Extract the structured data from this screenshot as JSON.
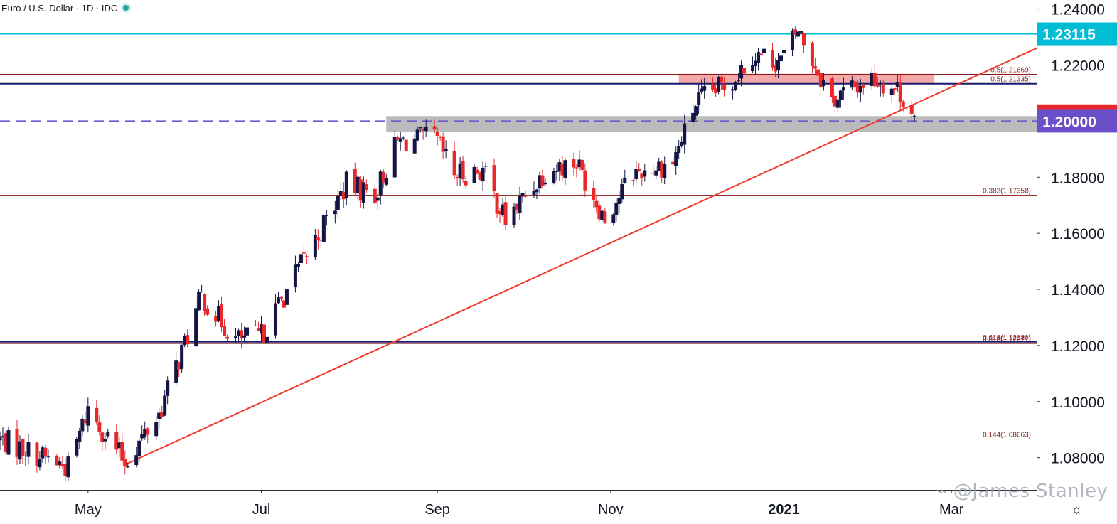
{
  "header": {
    "symbol": "Euro / U.S. Dollar",
    "interval": "1D",
    "source": "IDC"
  },
  "watermark": "@James Stanley",
  "icons": {
    "status": "market-open-dot-icon",
    "settings": "gear-icon",
    "watermark": "weibo-icon"
  },
  "colors": {
    "up": "#131545",
    "down": "#e8282b",
    "resistance_line": "#00bcd4",
    "navy_line": "#1a1a6e",
    "dashed_line": "#6a5acd",
    "fib_line": "#8b1a1a",
    "trendline": "#ef3b2c",
    "red_zone": "#f28b8b",
    "gray_zone": "#9e9e9e"
  },
  "chart_data": {
    "type": "candlestick",
    "title": "Euro / U.S. Dollar · 1D · IDC",
    "y_axis": {
      "ticks": [
        1.24,
        1.22,
        1.2,
        1.18,
        1.16,
        1.14,
        1.12,
        1.1,
        1.08
      ],
      "tick_labels": [
        "1.24000",
        "1.22000",
        "1.20000",
        "1.18000",
        "1.16000",
        "1.14000",
        "1.12000",
        "1.10000",
        "1.08000"
      ],
      "range": [
        1.0685,
        1.2432
      ]
    },
    "x_axis": {
      "range": [
        "2020-03-31",
        "2021-03-31"
      ],
      "ticks": [
        {
          "date": "2020-05-01",
          "label": "May",
          "bold": false
        },
        {
          "date": "2020-07-01",
          "label": "Jul",
          "bold": false
        },
        {
          "date": "2020-09-01",
          "label": "Sep",
          "bold": false
        },
        {
          "date": "2020-11-01",
          "label": "Nov",
          "bold": false
        },
        {
          "date": "2021-01-01",
          "label": "2021",
          "bold": true
        },
        {
          "date": "2021-03-01",
          "label": "Mar",
          "bold": false
        }
      ]
    },
    "price_tags": [
      {
        "label": "1.23115",
        "value": 1.23115,
        "color": "#00bcd4"
      },
      {
        "label": "1.20193",
        "value": 1.20193,
        "color": "#e8282b"
      },
      {
        "label": "1.20000",
        "value": 1.2,
        "color": "#6a4fc9"
      }
    ],
    "horizontal_levels": [
      {
        "value": 1.23115,
        "style": "solid",
        "color": "#00bcd4",
        "width": 2
      },
      {
        "value": 1.21669,
        "style": "solid",
        "color": "#8b1a1a",
        "width": 1
      },
      {
        "value": 1.21335,
        "style": "solid",
        "color": "#1a1a6e",
        "width": 2
      },
      {
        "value": 1.2,
        "style": "dashed",
        "color": "#6a5acd",
        "width": 2
      },
      {
        "value": 1.17358,
        "style": "solid",
        "color": "#8b1a1a",
        "width": 1
      },
      {
        "value": 1.1213,
        "style": "solid",
        "color": "#1a1a6e",
        "width": 2
      },
      {
        "value": 1.12071,
        "style": "solid",
        "color": "#8b1a1a",
        "width": 1
      },
      {
        "value": 1.08663,
        "style": "solid",
        "color": "#8b1a1a",
        "width": 1
      }
    ],
    "fib_labels": [
      {
        "text": "0.5(1.21669)",
        "value": 1.21669
      },
      {
        "text": "0.5(1.21335)",
        "value": 1.21335
      },
      {
        "text": "0.382(1.17358)",
        "value": 1.17358
      },
      {
        "text": "0.618(1.12130)",
        "value": 1.1213
      },
      {
        "text": "0.618(1.12071)",
        "value": 1.12071
      },
      {
        "text": "0.144(1.08663)",
        "value": 1.08663
      }
    ],
    "zones": [
      {
        "from_date": "2020-11-25",
        "to_date": "2021-02-23",
        "high": 1.2169,
        "low": 1.2135,
        "color": "#f28b8b"
      },
      {
        "from_date": "2020-08-14",
        "to_date": "2021-03-31",
        "high": 1.2018,
        "low": 1.1962,
        "color": "#9e9e9e"
      }
    ],
    "trendline": {
      "start": {
        "date": "2020-05-14",
        "value": 1.0775
      },
      "end": {
        "date": "2021-03-31",
        "value": 1.226
      }
    },
    "anchors": [
      {
        "date": "2020-03-31",
        "value": 1.0866
      },
      {
        "date": "2020-04-24",
        "value": 1.0765
      },
      {
        "date": "2020-05-01",
        "value": 1.0975
      },
      {
        "date": "2020-05-14",
        "value": 1.0785
      },
      {
        "date": "2020-05-26",
        "value": 1.0955
      },
      {
        "date": "2020-06-10",
        "value": 1.1375
      },
      {
        "date": "2020-06-22",
        "value": 1.122
      },
      {
        "date": "2020-07-01",
        "value": 1.1235
      },
      {
        "date": "2020-07-31",
        "value": 1.1775
      },
      {
        "date": "2020-08-10",
        "value": 1.174
      },
      {
        "date": "2020-08-18",
        "value": 1.1925
      },
      {
        "date": "2020-08-31",
        "value": 1.194
      },
      {
        "date": "2020-09-07",
        "value": 1.181
      },
      {
        "date": "2020-09-17",
        "value": 1.1825
      },
      {
        "date": "2020-09-25",
        "value": 1.1645
      },
      {
        "date": "2020-10-09",
        "value": 1.1825
      },
      {
        "date": "2020-10-20",
        "value": 1.1855
      },
      {
        "date": "2020-10-30",
        "value": 1.1655
      },
      {
        "date": "2020-11-09",
        "value": 1.1815
      },
      {
        "date": "2020-11-23",
        "value": 1.1855
      },
      {
        "date": "2020-12-01",
        "value": 1.2065
      },
      {
        "date": "2020-12-14",
        "value": 1.215
      },
      {
        "date": "2020-12-21",
        "value": 1.224
      },
      {
        "date": "2020-12-31",
        "value": 1.2215
      },
      {
        "date": "2021-01-06",
        "value": 1.2325
      },
      {
        "date": "2021-01-18",
        "value": 1.2075
      },
      {
        "date": "2021-02-01",
        "value": 1.2155
      },
      {
        "date": "2021-02-10",
        "value": 1.2115
      },
      {
        "date": "2021-02-16",
        "value": 1.2025
      }
    ]
  }
}
